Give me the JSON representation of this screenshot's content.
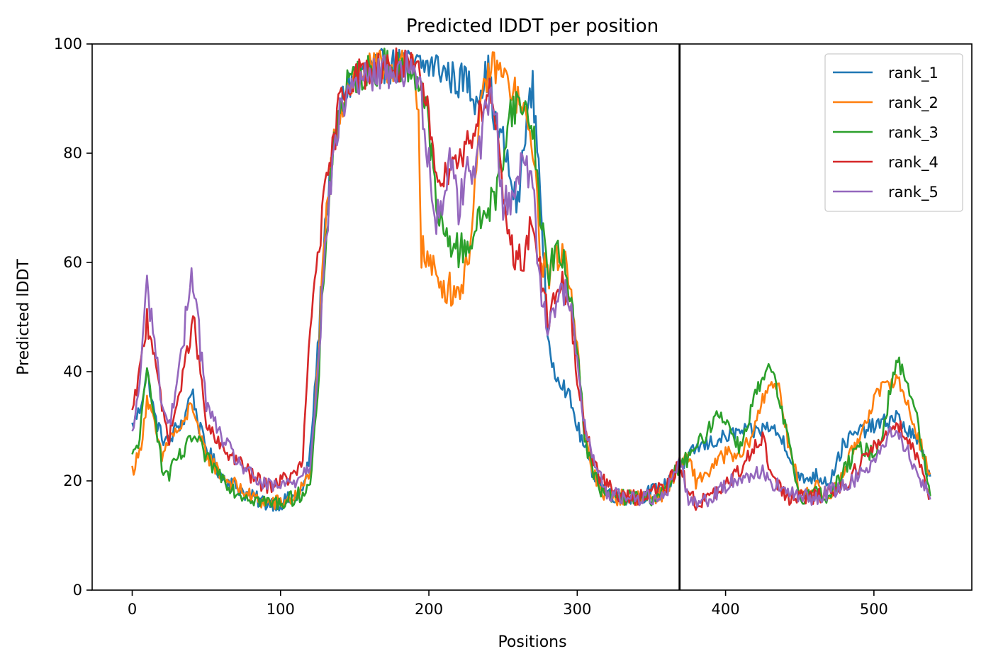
{
  "chart_data": {
    "type": "line",
    "title": "Predicted lDDT per position",
    "xlabel": "Positions",
    "ylabel": "Predicted lDDT",
    "xlim": [
      -27,
      566
    ],
    "ylim": [
      0,
      100
    ],
    "xticks": [
      0,
      100,
      200,
      300,
      400,
      500
    ],
    "yticks": [
      0,
      20,
      40,
      60,
      80,
      100
    ],
    "grid": false,
    "legend_position": "top-right",
    "vline": {
      "x": 369,
      "color": "#000000"
    },
    "noise_amplitude": [
      1.5,
      1.5,
      1.5,
      1.5,
      1.5
    ],
    "series": [
      {
        "name": "rank_1",
        "color": "#1f77b4",
        "x": [
          0,
          5,
          10,
          15,
          20,
          25,
          30,
          35,
          40,
          45,
          50,
          60,
          70,
          80,
          90,
          100,
          110,
          115,
          120,
          125,
          130,
          135,
          140,
          145,
          150,
          160,
          170,
          180,
          190,
          195,
          200,
          205,
          210,
          215,
          220,
          225,
          230,
          235,
          240,
          245,
          250,
          255,
          260,
          265,
          270,
          275,
          280,
          285,
          290,
          295,
          300,
          305,
          310,
          315,
          320,
          330,
          340,
          350,
          360,
          365,
          369,
          375,
          380,
          390,
          400,
          410,
          420,
          430,
          440,
          450,
          460,
          470,
          480,
          490,
          500,
          510,
          515,
          520,
          530,
          538
        ],
        "y": [
          30,
          33,
          40,
          32,
          28,
          27,
          30,
          31,
          37,
          30,
          26,
          21,
          19,
          17,
          16,
          16,
          17,
          18,
          25,
          44,
          67,
          78,
          88,
          92,
          94,
          95,
          96,
          96,
          96,
          96,
          96,
          96,
          95,
          94,
          93,
          94,
          90,
          92,
          95,
          85,
          82,
          75,
          70,
          85,
          92,
          75,
          45,
          40,
          38,
          35,
          30,
          26,
          22,
          20,
          18,
          17,
          17,
          18,
          19,
          21,
          23,
          24,
          26,
          27,
          28,
          29,
          29,
          30,
          27,
          20,
          21,
          20,
          27,
          29,
          30,
          31,
          32,
          30,
          27,
          20
        ]
      },
      {
        "name": "rank_2",
        "color": "#ff7f0e",
        "x": [
          0,
          5,
          10,
          15,
          20,
          25,
          30,
          35,
          40,
          45,
          50,
          60,
          70,
          80,
          90,
          100,
          110,
          120,
          125,
          130,
          135,
          140,
          145,
          150,
          160,
          170,
          180,
          190,
          193,
          195,
          200,
          205,
          210,
          215,
          220,
          225,
          230,
          235,
          240,
          245,
          250,
          255,
          260,
          265,
          270,
          275,
          280,
          285,
          290,
          295,
          300,
          305,
          310,
          315,
          320,
          330,
          340,
          350,
          360,
          365,
          369,
          375,
          380,
          390,
          400,
          410,
          420,
          425,
          430,
          435,
          440,
          450,
          460,
          470,
          480,
          490,
          500,
          510,
          515,
          520,
          530,
          538
        ],
        "y": [
          22,
          25,
          35,
          30,
          24,
          28,
          29,
          30,
          35,
          28,
          25,
          21,
          19,
          17,
          16,
          16,
          17,
          21,
          40,
          65,
          80,
          88,
          92,
          94,
          95,
          96,
          96,
          95,
          88,
          62,
          60,
          57,
          56,
          55,
          55,
          58,
          70,
          88,
          95,
          96,
          94,
          92,
          90,
          86,
          82,
          62,
          58,
          60,
          62,
          58,
          45,
          28,
          22,
          19,
          17,
          17,
          17,
          17,
          18,
          21,
          23,
          24,
          20,
          22,
          25,
          24,
          30,
          35,
          38,
          38,
          30,
          18,
          19,
          17,
          22,
          28,
          35,
          38,
          39,
          36,
          28,
          21
        ]
      },
      {
        "name": "rank_3",
        "color": "#2ca02c",
        "x": [
          0,
          5,
          10,
          15,
          20,
          25,
          30,
          35,
          40,
          45,
          50,
          60,
          70,
          80,
          90,
          100,
          110,
          120,
          125,
          130,
          135,
          140,
          145,
          150,
          160,
          170,
          180,
          190,
          195,
          200,
          205,
          210,
          215,
          220,
          225,
          230,
          235,
          240,
          245,
          250,
          255,
          260,
          265,
          270,
          275,
          280,
          285,
          290,
          295,
          300,
          305,
          310,
          315,
          320,
          330,
          340,
          350,
          360,
          365,
          369,
          375,
          380,
          385,
          390,
          395,
          400,
          410,
          420,
          425,
          430,
          435,
          440,
          450,
          460,
          470,
          480,
          490,
          500,
          505,
          510,
          515,
          520,
          525,
          530,
          538
        ],
        "y": [
          24,
          28,
          40,
          33,
          22,
          21,
          24,
          25,
          28,
          27,
          24,
          21,
          18,
          17,
          16,
          16,
          17,
          19,
          35,
          62,
          80,
          88,
          92,
          94,
          95,
          96,
          96,
          95,
          92,
          85,
          70,
          65,
          64,
          62,
          63,
          65,
          68,
          70,
          72,
          80,
          88,
          89,
          88,
          85,
          70,
          58,
          62,
          60,
          55,
          45,
          28,
          22,
          19,
          17,
          17,
          17,
          17,
          18,
          21,
          23,
          24,
          26,
          28,
          30,
          33,
          31,
          26,
          36,
          38,
          41,
          36,
          30,
          17,
          18,
          17,
          22,
          26,
          25,
          28,
          35,
          42,
          40,
          36,
          30,
          17
        ]
      },
      {
        "name": "rank_4",
        "color": "#d62728",
        "x": [
          0,
          5,
          10,
          15,
          20,
          25,
          30,
          35,
          40,
          45,
          50,
          60,
          70,
          80,
          90,
          100,
          110,
          115,
          120,
          125,
          130,
          135,
          140,
          145,
          150,
          160,
          170,
          180,
          190,
          195,
          200,
          205,
          210,
          215,
          220,
          225,
          230,
          235,
          240,
          245,
          250,
          255,
          260,
          265,
          270,
          275,
          280,
          285,
          290,
          295,
          300,
          305,
          310,
          315,
          320,
          330,
          340,
          350,
          360,
          365,
          369,
          375,
          380,
          390,
          400,
          410,
          420,
          425,
          430,
          440,
          450,
          460,
          470,
          480,
          490,
          500,
          510,
          515,
          520,
          530,
          538
        ],
        "y": [
          32,
          40,
          50,
          44,
          33,
          28,
          34,
          40,
          50,
          42,
          30,
          26,
          24,
          21,
          19,
          20,
          21,
          24,
          48,
          62,
          72,
          80,
          90,
          93,
          94,
          95,
          96,
          96,
          95,
          93,
          86,
          78,
          74,
          80,
          78,
          82,
          84,
          88,
          92,
          86,
          70,
          64,
          60,
          62,
          68,
          58,
          50,
          53,
          55,
          53,
          38,
          30,
          25,
          21,
          19,
          17,
          17,
          18,
          19,
          21,
          23,
          18,
          16,
          17,
          19,
          22,
          27,
          28,
          22,
          17,
          17,
          17,
          18,
          19,
          23,
          26,
          29,
          31,
          29,
          24,
          17
        ]
      },
      {
        "name": "rank_5",
        "color": "#9467bd",
        "x": [
          0,
          5,
          10,
          15,
          20,
          25,
          30,
          35,
          40,
          45,
          50,
          60,
          70,
          80,
          90,
          100,
          110,
          120,
          125,
          130,
          135,
          140,
          145,
          150,
          160,
          170,
          180,
          190,
          195,
          200,
          205,
          210,
          215,
          220,
          225,
          230,
          235,
          240,
          245,
          250,
          255,
          260,
          265,
          270,
          275,
          280,
          285,
          290,
          295,
          300,
          305,
          310,
          315,
          320,
          330,
          340,
          350,
          360,
          365,
          369,
          375,
          380,
          390,
          400,
          410,
          420,
          425,
          430,
          440,
          450,
          460,
          470,
          480,
          490,
          500,
          510,
          515,
          520,
          530,
          538
        ],
        "y": [
          28,
          38,
          56,
          46,
          34,
          30,
          38,
          46,
          60,
          48,
          34,
          28,
          24,
          21,
          19,
          19,
          20,
          23,
          40,
          62,
          78,
          87,
          91,
          93,
          94,
          95,
          95,
          96,
          90,
          78,
          68,
          72,
          80,
          70,
          76,
          78,
          82,
          90,
          88,
          70,
          72,
          76,
          78,
          75,
          55,
          50,
          52,
          55,
          52,
          42,
          30,
          24,
          21,
          18,
          17,
          17,
          17,
          18,
          21,
          24,
          17,
          16,
          17,
          19,
          21,
          21,
          22,
          20,
          18,
          17,
          17,
          18,
          19,
          21,
          24,
          28,
          30,
          27,
          21,
          17
        ]
      }
    ]
  }
}
